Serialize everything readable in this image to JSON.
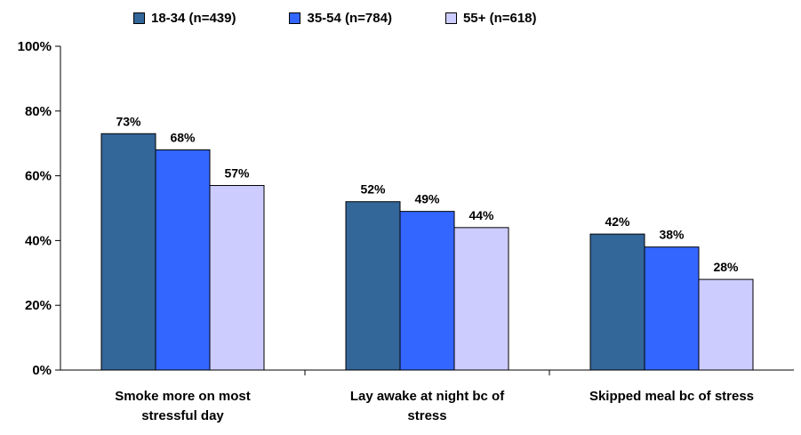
{
  "chart_data": {
    "type": "bar",
    "categories": [
      [
        "Smoke more on most",
        "stressful day"
      ],
      [
        "Lay awake at night bc of",
        "stress"
      ],
      [
        "Skipped meal bc of stress"
      ]
    ],
    "series": [
      {
        "name": "18-34 (n=439)",
        "color": "#336699",
        "values": [
          73,
          52,
          42
        ],
        "labels": [
          "73%",
          "52%",
          "42%"
        ]
      },
      {
        "name": "35-54 (n=784)",
        "color": "#3366FF",
        "values": [
          68,
          49,
          38
        ],
        "labels": [
          "68%",
          "49%",
          "38%"
        ]
      },
      {
        "name": "55+ (n=618)",
        "color": "#CCCCFF",
        "values": [
          57,
          44,
          28
        ],
        "labels": [
          "57%",
          "44%",
          "28%"
        ]
      }
    ],
    "y_ticks": [
      "0%",
      "20%",
      "40%",
      "60%",
      "80%",
      "100%"
    ],
    "ylim": [
      0,
      100
    ],
    "grid": false,
    "legend_position": "top-center"
  }
}
